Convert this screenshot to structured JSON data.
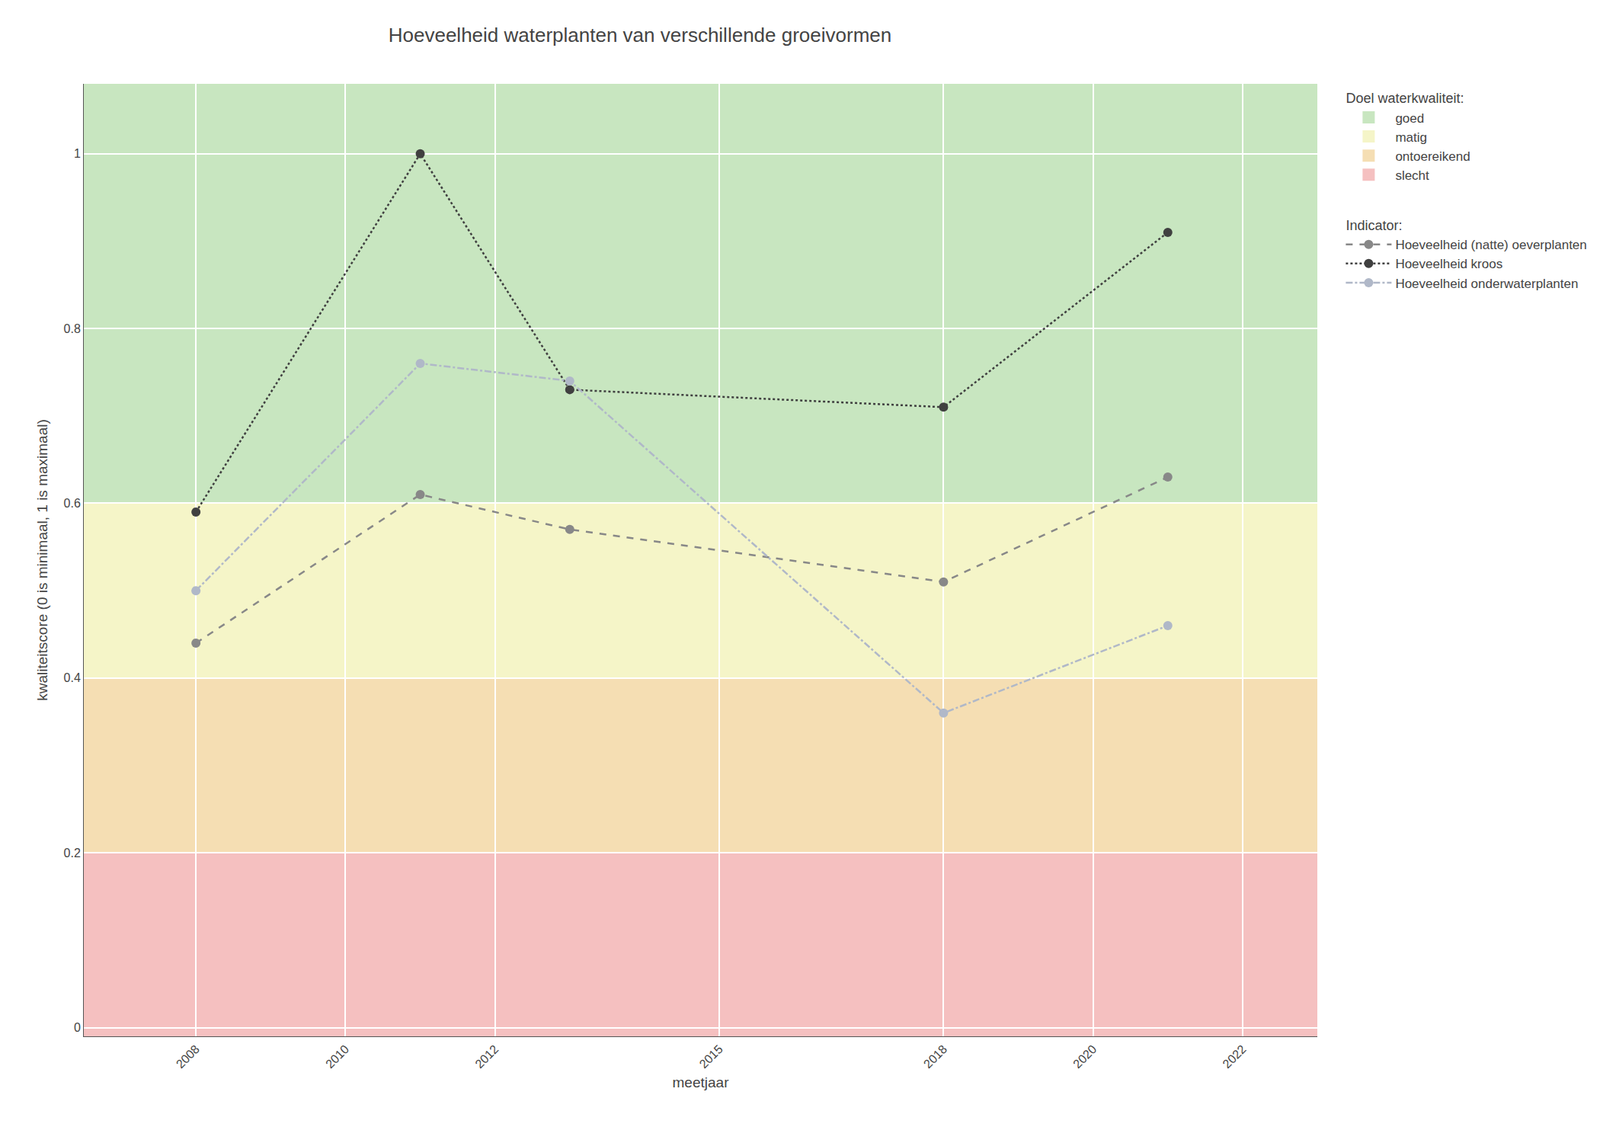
{
  "chart_data": {
    "type": "line",
    "title": "Hoeveelheid waterplanten van verschillende groeivormen",
    "xlabel": "meetjaar",
    "ylabel": "kwaliteitscore (0 is minimaal, 1 is maximaal)",
    "x": [
      2008,
      2011,
      2013,
      2018,
      2021
    ],
    "series": [
      {
        "name": "Hoeveelheid (natte) oeverplanten",
        "color": "#888888",
        "line_style": "dashed",
        "marker": "circle",
        "values": [
          0.44,
          0.61,
          0.57,
          0.51,
          0.63
        ]
      },
      {
        "name": "Hoeveelheid kroos",
        "color": "#404040",
        "line_style": "dotted",
        "marker": "circle",
        "values": [
          0.59,
          1.0,
          0.73,
          0.71,
          0.91
        ]
      },
      {
        "name": "Hoeveelheid onderwaterplanten",
        "color": "#b0b8c8",
        "line_style": "dashdot",
        "marker": "circle",
        "values": [
          0.5,
          0.76,
          0.74,
          0.36,
          0.46
        ]
      }
    ],
    "series_title": "Indicator:",
    "bands": {
      "title": "Doel waterkwaliteit:",
      "items": [
        {
          "name": "goed",
          "color": "#c8e6c0",
          "range": [
            0.6,
            1.08
          ]
        },
        {
          "name": "matig",
          "color": "#f5f5c8",
          "range": [
            0.4,
            0.6
          ]
        },
        {
          "name": "ontoereikend",
          "color": "#f5deb3",
          "range": [
            0.2,
            0.4
          ]
        },
        {
          "name": "slecht",
          "color": "#f5c0c0",
          "range": [
            -0.01,
            0.2
          ]
        }
      ]
    },
    "xlim": [
      2006.5,
      2023.0
    ],
    "ylim": [
      -0.01,
      1.08
    ],
    "xticks": [
      2008,
      2010,
      2012,
      2015,
      2018,
      2020,
      2022
    ],
    "yticks": [
      0,
      0.2,
      0.4,
      0.6,
      0.8,
      1
    ],
    "grid": true
  }
}
